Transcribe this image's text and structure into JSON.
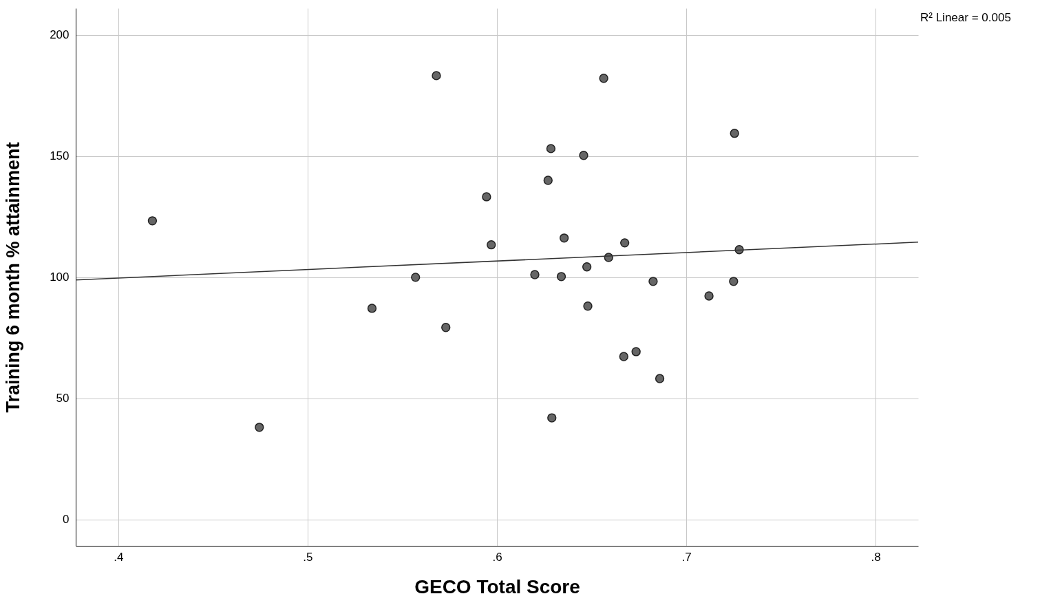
{
  "chart_data": {
    "type": "scatter",
    "xlabel": "GECO Total Score",
    "ylabel": "Training 6 month % attainment",
    "annotations": [
      "R² Linear = 0.005"
    ],
    "xlim": [
      0.3775,
      0.8225
    ],
    "ylim": [
      -10.8,
      211
    ],
    "xticks": [
      {
        "value": 0.4,
        "label": ".4"
      },
      {
        "value": 0.5,
        "label": ".5"
      },
      {
        "value": 0.6,
        "label": ".6"
      },
      {
        "value": 0.7,
        "label": ".7"
      },
      {
        "value": 0.8,
        "label": ".8"
      }
    ],
    "yticks": [
      0,
      50,
      100,
      150,
      200
    ],
    "grid": true,
    "marker": "circle",
    "series": [
      {
        "color": "#666666",
        "x": [
          0.418,
          0.4745,
          0.534,
          0.557,
          0.568,
          0.573,
          0.5945,
          0.597,
          0.62,
          0.627,
          0.6285,
          0.629,
          0.634,
          0.6355,
          0.6458,
          0.6475,
          0.648,
          0.6564,
          0.659,
          0.667,
          0.6675,
          0.6735,
          0.6825,
          0.686,
          0.712,
          0.725,
          0.7255,
          0.728
        ],
        "values": [
          123.3,
          38.1,
          87.2,
          100,
          183.2,
          79.3,
          133.2,
          113.4,
          101.1,
          140,
          153.1,
          42,
          100.3,
          116.2,
          150.3,
          104.3,
          88.1,
          182.1,
          108.2,
          67.3,
          114.2,
          69.3,
          98.3,
          58.2,
          92.3,
          98.3,
          159.4,
          111.4
        ]
      },
      {
        "type": "line",
        "marker": "none",
        "color": "#333333",
        "x": [
          0.3775,
          0.8225
        ],
        "values": [
          98.9,
          114.5
        ]
      }
    ]
  }
}
